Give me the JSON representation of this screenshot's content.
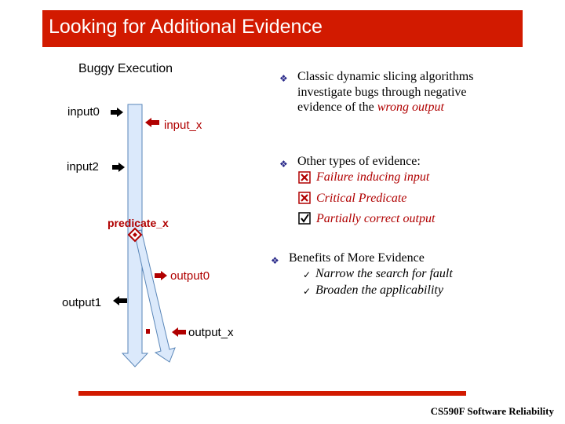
{
  "title": "Looking for Additional Evidence",
  "diagram": {
    "heading": "Buggy Execution",
    "input0": "input0",
    "input_x": "input_x",
    "input2": "input2",
    "predicate_x": "predicate_x",
    "output0": "output0",
    "output1": "output1",
    "output_x": "output_x"
  },
  "bullets": [
    {
      "lines": [
        "Classic dynamic slicing algorithms",
        "investigate bugs through negative"
      ],
      "last_prefix": "evidence of the ",
      "last_italic": "wrong output"
    },
    {
      "head": "Other types of evidence:",
      "items": [
        {
          "icon": "x-box-icon",
          "label": "Failure inducing input"
        },
        {
          "icon": "x-box-icon",
          "label": "Critical Predicate"
        },
        {
          "icon": "check-box-icon",
          "label": "Partially correct output"
        }
      ]
    },
    {
      "head": "Benefits of More Evidence",
      "items": [
        {
          "icon": "check-icon",
          "label": "Narrow the search for fault"
        },
        {
          "icon": "check-icon",
          "label": "Broaden the applicability"
        }
      ]
    }
  ],
  "footer": "CS590F Software Reliability",
  "colors": {
    "accent": "#d21a00",
    "arrow_fill": "#dbe9fb",
    "arrow_stroke": "#5a86b8",
    "bullet": "#2a2a8a"
  }
}
